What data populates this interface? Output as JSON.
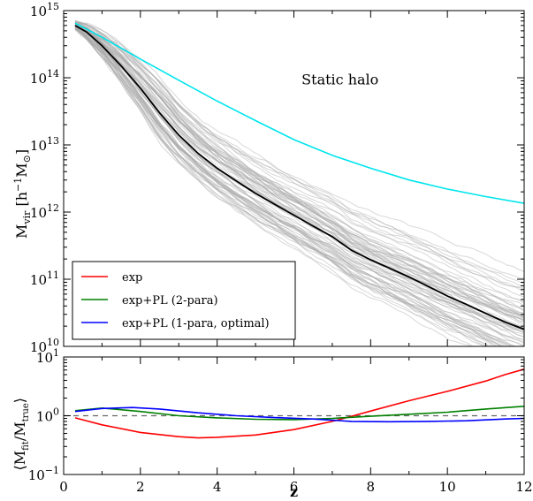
{
  "chart_data": [
    {
      "type": "line",
      "panel": "top",
      "yscale": "log",
      "xlim": [
        0,
        12
      ],
      "ylim": [
        10000000000,
        1000000000000000
      ],
      "xlabel": "",
      "ylabel_main": "M",
      "ylabel_sub": "vir",
      "ylabel_rest": " [h",
      "ylabel_sup": "−1",
      "ylabel_tail": "M",
      "ylabel_sun": "⊙",
      "ylabel_close": "]",
      "yticks": [
        {
          "value": 10000000000,
          "base": "10",
          "exp": "10"
        },
        {
          "value": 100000000000,
          "base": "10",
          "exp": "11"
        },
        {
          "value": 1000000000000,
          "base": "10",
          "exp": "12"
        },
        {
          "value": 10000000000000,
          "base": "10",
          "exp": "13"
        },
        {
          "value": 100000000000000,
          "base": "10",
          "exp": "14"
        },
        {
          "value": 1000000000000000,
          "base": "10",
          "exp": "15"
        }
      ],
      "annotation": {
        "text": "Static halo",
        "x": 6.2,
        "y": 80000000000000
      },
      "legend_position": "lower-left",
      "legend": [
        {
          "label": "exp",
          "color": "#ff0000"
        },
        {
          "label": "exp+PL (2-para)",
          "color": "#008000"
        },
        {
          "label": "exp+PL (1-para, optimal)",
          "color": "#0000ff"
        }
      ],
      "series": [
        {
          "name": "Static halo",
          "color": "#00e5ee",
          "x": [
            0.3,
            1,
            2,
            3,
            4,
            5,
            6,
            7,
            8,
            9,
            10,
            11,
            12
          ],
          "y": [
            650000000000000,
            400000000000000,
            190000000000000,
            92000000000000,
            45000000000000,
            23000000000000,
            12000000000000,
            7000000000000,
            4500000000000,
            3000000000000,
            2200000000000,
            1700000000000,
            1350000000000
          ]
        },
        {
          "name": "median",
          "color": "#000000",
          "x": [
            0.3,
            0.6,
            1,
            1.5,
            2,
            2.5,
            3,
            3.5,
            4,
            4.5,
            5,
            5.5,
            6,
            6.5,
            7,
            7.5,
            8,
            8.5,
            9,
            9.5,
            10,
            10.5,
            11,
            11.5,
            12
          ],
          "y": [
            600000000000000,
            480000000000000,
            300000000000000,
            150000000000000,
            70000000000000,
            30000000000000,
            14000000000000,
            7500000000000,
            4500000000000,
            2900000000000,
            1900000000000,
            1300000000000,
            900000000000,
            620000000000,
            430000000000,
            270000000000,
            195000000000,
            145000000000,
            108000000000,
            78000000000,
            56000000000,
            42000000000,
            31000000000,
            23000000000,
            18000000000
          ]
        }
      ]
    },
    {
      "type": "line",
      "panel": "bottom",
      "yscale": "log",
      "xlim": [
        0,
        12
      ],
      "ylim": [
        0.1,
        10
      ],
      "xlabel": "z",
      "xticks": [
        "0",
        "2",
        "4",
        "6",
        "8",
        "10",
        "12"
      ],
      "ylabel_main": "⟨M",
      "ylabel_sub": "fit",
      "ylabel_mid": "/M",
      "ylabel_sub2": "true",
      "ylabel_close": "⟩",
      "yticks": [
        {
          "value": 0.1,
          "base": "10",
          "exp": "−1"
        },
        {
          "value": 1,
          "base": "10",
          "exp": "0"
        },
        {
          "value": 10,
          "base": "10",
          "exp": "1"
        }
      ],
      "reference_line": 1,
      "series": [
        {
          "name": "exp",
          "color": "#ff0000",
          "x": [
            0.3,
            1,
            2,
            3,
            3.5,
            4,
            5,
            6,
            7,
            7.5,
            8,
            9,
            10,
            11,
            11.5,
            12
          ],
          "y": [
            0.92,
            0.7,
            0.52,
            0.44,
            0.42,
            0.43,
            0.47,
            0.58,
            0.8,
            0.98,
            1.2,
            1.8,
            2.6,
            3.9,
            5.0,
            6.2
          ]
        },
        {
          "name": "exp+PL (2-para)",
          "color": "#008000",
          "x": [
            0.3,
            1,
            2,
            3,
            4,
            5,
            6,
            7,
            8,
            9,
            10,
            11,
            12
          ],
          "y": [
            1.22,
            1.35,
            1.18,
            1.0,
            0.92,
            0.87,
            0.86,
            0.9,
            0.98,
            1.06,
            1.15,
            1.3,
            1.45
          ]
        },
        {
          "name": "exp+PL (1-para, optimal)",
          "color": "#0000ff",
          "x": [
            0.3,
            1,
            1.8,
            2.5,
            3.5,
            4.5,
            5.5,
            6.5,
            7.5,
            8.5,
            9.5,
            10.5,
            11.5,
            12
          ],
          "y": [
            1.18,
            1.33,
            1.38,
            1.3,
            1.12,
            1.0,
            0.93,
            0.88,
            0.8,
            0.79,
            0.8,
            0.82,
            0.88,
            0.9
          ]
        }
      ]
    }
  ]
}
